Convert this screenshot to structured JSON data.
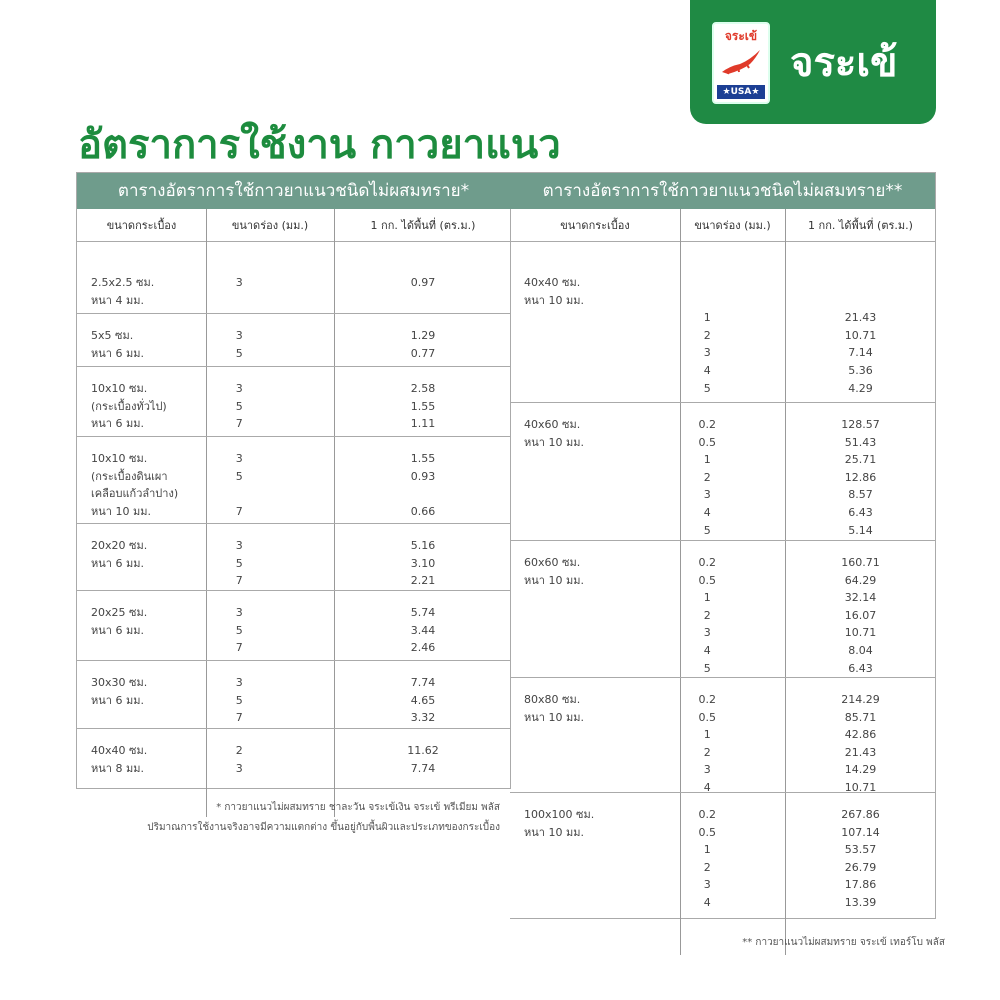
{
  "logo": {
    "badge_text": "จระเข้",
    "badge_usa": "★USA★",
    "brand_name": "จระเข้",
    "color": "#1f8a44"
  },
  "title": "อัตราการใช้งาน กาวยาแนว",
  "header_color": "#6f9c8c",
  "tables": [
    {
      "title": "ตารางอัตราการใช้กาวยาแนวชนิดไม่ผสมทราย*",
      "columns": [
        "ขนาดกระเบื้อง",
        "ขนาดร่อง (มม.)",
        "1 กก. ได้พื้นที่ (ตร.ม.)"
      ],
      "groups": [
        {
          "rows": [
            [
              "2.5x2.5 ซม.",
              "3",
              "0.97"
            ],
            [
              "หนา 4 มม.",
              "",
              ""
            ]
          ]
        },
        {
          "rows": [
            [
              "5x5 ซม.",
              "3",
              "1.29"
            ],
            [
              "หนา 6 มม.",
              "5",
              "0.77"
            ]
          ]
        },
        {
          "rows": [
            [
              "10x10 ซม.",
              "3",
              "2.58"
            ],
            [
              "(กระเบื้องทั่วไป)",
              "5",
              "1.55"
            ],
            [
              "หนา 6 มม.",
              "7",
              "1.11"
            ]
          ]
        },
        {
          "rows": [
            [
              "10x10 ซม.",
              "3",
              "1.55"
            ],
            [
              "(กระเบื้องดินเผา",
              "5",
              "0.93"
            ],
            [
              "เคลือบแก้วลำปาง)",
              "",
              ""
            ],
            [
              "หนา 10 มม.",
              "7",
              "0.66"
            ]
          ]
        },
        {
          "rows": [
            [
              "20x20 ซม.",
              "3",
              "5.16"
            ],
            [
              "หนา 6 มม.",
              "5",
              "3.10"
            ],
            [
              "",
              "7",
              "2.21"
            ]
          ]
        },
        {
          "rows": [
            [
              "20x25 ซม.",
              "3",
              "5.74"
            ],
            [
              "หนา 6 มม.",
              "5",
              "3.44"
            ],
            [
              "",
              "7",
              "2.46"
            ]
          ]
        },
        {
          "rows": [
            [
              "30x30 ซม.",
              "3",
              "7.74"
            ],
            [
              "หนา 6 มม.",
              "5",
              "4.65"
            ],
            [
              "",
              "7",
              "3.32"
            ]
          ]
        },
        {
          "rows": [
            [
              "40x40 ซม.",
              "2",
              "11.62"
            ],
            [
              "หนา 8 มม.",
              "3",
              "7.74"
            ]
          ]
        }
      ],
      "notes": [
        "* กาวยาแนวไม่ผสมทราย ชาละวัน จระเข้เงิน จระเข้ พรีเมียม พลัส",
        "ปริมาณการใช้งานจริงอาจมีความแตกต่าง ขึ้นอยู่กับพื้นผิวและประเภทของกระเบื้อง"
      ]
    },
    {
      "title": "ตารางอัตราการใช้กาวยาแนวชนิดไม่ผสมทราย**",
      "columns": [
        "ขนาดกระเบื้อง",
        "ขนาดร่อง (มม.)",
        "1 กก. ได้พื้นที่ (ตร.ม.)"
      ],
      "groups": [
        {
          "rows": [
            [
              "40x40 ซม.",
              "",
              ""
            ],
            [
              "หนา 10 มม.",
              "",
              ""
            ],
            [
              "",
              "1",
              "21.43"
            ],
            [
              "",
              "2",
              "10.71"
            ],
            [
              "",
              "3",
              "7.14"
            ],
            [
              "",
              "4",
              "5.36"
            ],
            [
              "",
              "5",
              "4.29"
            ]
          ]
        },
        {
          "rows": [
            [
              "40x60 ซม.",
              "0.2",
              "128.57"
            ],
            [
              "หนา 10 มม.",
              "0.5",
              "51.43"
            ],
            [
              "",
              "1",
              "25.71"
            ],
            [
              "",
              "2",
              "12.86"
            ],
            [
              "",
              "3",
              "8.57"
            ],
            [
              "",
              "4",
              "6.43"
            ],
            [
              "",
              "5",
              "5.14"
            ]
          ]
        },
        {
          "rows": [
            [
              "60x60 ซม.",
              "0.2",
              "160.71"
            ],
            [
              "หนา 10 มม.",
              "0.5",
              "64.29"
            ],
            [
              "",
              "1",
              "32.14"
            ],
            [
              "",
              "2",
              "16.07"
            ],
            [
              "",
              "3",
              "10.71"
            ],
            [
              "",
              "4",
              "8.04"
            ],
            [
              "",
              "5",
              "6.43"
            ]
          ]
        },
        {
          "rows": [
            [
              "80x80 ซม.",
              "0.2",
              "214.29"
            ],
            [
              "หนา 10 มม.",
              "0.5",
              "85.71"
            ],
            [
              "",
              "1",
              "42.86"
            ],
            [
              "",
              "2",
              "21.43"
            ],
            [
              "",
              "3",
              "14.29"
            ],
            [
              "",
              "4",
              "10.71"
            ]
          ]
        },
        {
          "rows": [
            [
              "100x100 ซม.",
              "0.2",
              "267.86"
            ],
            [
              "หนา 10 มม.",
              "0.5",
              "107.14"
            ],
            [
              "",
              "1",
              "53.57"
            ],
            [
              "",
              "2",
              "26.79"
            ],
            [
              "",
              "3",
              "17.86"
            ],
            [
              "",
              "4",
              "13.39"
            ]
          ]
        }
      ],
      "notes": [
        "** กาวยาแนวไม่ผสมทราย จระเข้ เทอร์โบ พลัส"
      ]
    }
  ]
}
